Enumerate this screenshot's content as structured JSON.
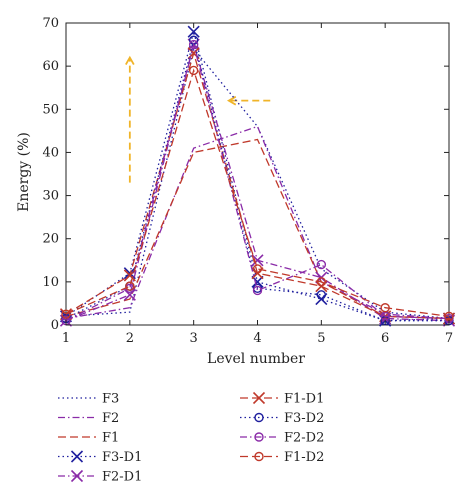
{
  "chart_data": {
    "type": "line",
    "xlabel": "Level number",
    "ylabel": "Energy (%)",
    "x": [
      1,
      2,
      3,
      4,
      5,
      6,
      7
    ],
    "xlim": [
      1,
      7
    ],
    "ylim": [
      0,
      70
    ],
    "xticks": [
      "1",
      "2",
      "3",
      "4",
      "5",
      "6",
      "7"
    ],
    "yticks": [
      "0",
      "10",
      "20",
      "30",
      "40",
      "50",
      "60",
      "70"
    ],
    "grid": false,
    "legend_position": "bottom",
    "series": [
      {
        "name": "F3",
        "values": [
          2,
          3,
          64,
          46,
          13,
          3,
          1.5
        ],
        "color": "#1f1f9e",
        "dash": "dotted",
        "marker": "none"
      },
      {
        "name": "F2",
        "values": [
          1.5,
          4,
          41,
          46,
          10,
          2.5,
          1.5
        ],
        "color": "#8a2ba8",
        "dash": "dashdot",
        "marker": "none"
      },
      {
        "name": "F1",
        "values": [
          2,
          6,
          40,
          43,
          10,
          2,
          1.5
        ],
        "color": "#c0392b",
        "dash": "dashed",
        "marker": "none"
      },
      {
        "name": "F3-D1",
        "values": [
          2,
          12,
          68,
          10,
          6,
          1,
          1.5
        ],
        "color": "#1f1f9e",
        "dash": "dotted",
        "marker": "x"
      },
      {
        "name": "F2-D1",
        "values": [
          1,
          7,
          65,
          15,
          11,
          1.5,
          1
        ],
        "color": "#8a2ba8",
        "dash": "dashdot",
        "marker": "x"
      },
      {
        "name": "F1-D1",
        "values": [
          2.5,
          11.5,
          63,
          12,
          9,
          2,
          1.5
        ],
        "color": "#c0392b",
        "dash": "dashed",
        "marker": "x"
      },
      {
        "name": "F3-D2",
        "values": [
          1.5,
          9,
          66,
          8.5,
          7,
          1,
          1
        ],
        "color": "#1f1f9e",
        "dash": "dotted",
        "marker": "circle"
      },
      {
        "name": "F2-D2",
        "values": [
          1,
          8.5,
          65,
          8,
          14,
          2,
          1.5
        ],
        "color": "#8a2ba8",
        "dash": "dashdot",
        "marker": "circle"
      },
      {
        "name": "F1-D2",
        "values": [
          2.5,
          9,
          59,
          13,
          10,
          4,
          2
        ],
        "color": "#c0392b",
        "dash": "dashed",
        "marker": "circle"
      }
    ],
    "annotations": [
      {
        "kind": "arrow",
        "direction": "up",
        "color": "#f0b429",
        "x": 2,
        "y_from": 33,
        "y_to": 62
      },
      {
        "kind": "arrow",
        "direction": "left",
        "color": "#f0b429",
        "y": 52,
        "x_from": 4.2,
        "x_to": 3.55
      }
    ]
  }
}
